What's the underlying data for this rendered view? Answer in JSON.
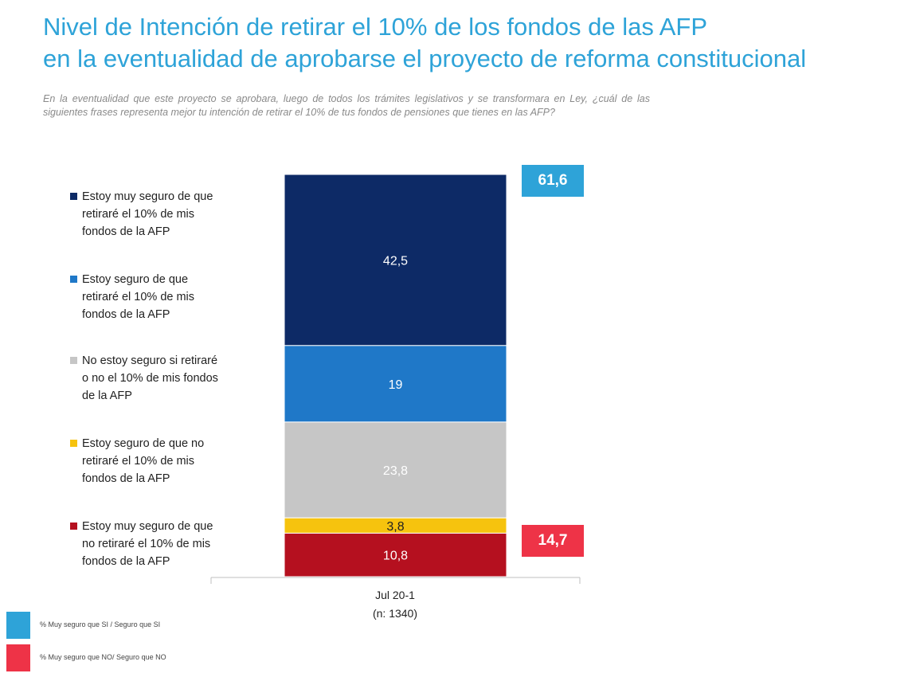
{
  "title": {
    "line1": "Nivel de Intención de retirar el 10% de los fondos de las AFP",
    "line2": "en la eventualidad de aprobarse el proyecto de reforma constitucional"
  },
  "subtitle": "En la eventualidad que este proyecto se aprobara, luego de todos los trámites legislativos y se transformara en Ley, ¿cuál de las siguientes frases representa mejor tu intención de retirar el 10% de tus fondos de pensiones que tienes en las AFP?",
  "chart_data": {
    "type": "bar",
    "stacked": true,
    "categories": [
      "Jul 20-1"
    ],
    "category_note": "(n: 1340)",
    "ylim": [
      0,
      100
    ],
    "grid": false,
    "legend_position": "left",
    "series": [
      {
        "name": "Estoy muy seguro de que retiraré el 10% de mis fondos de la AFP",
        "values": [
          42.5
        ],
        "label": "42,5",
        "color": "#0d2a66",
        "label_color": "#ffffff"
      },
      {
        "name": "Estoy seguro de que retiraré el 10% de mis fondos de la AFP",
        "values": [
          19
        ],
        "label": "19",
        "color": "#1f78c8",
        "label_color": "#ffffff"
      },
      {
        "name": "No estoy seguro si retiraré o no el 10% de mis fondos de la AFP",
        "values": [
          23.8
        ],
        "label": "23,8",
        "color": "#c6c6c6",
        "label_color": "#ffffff"
      },
      {
        "name": "Estoy seguro de que no retiraré el 10% de mis fondos de la AFP",
        "values": [
          3.8
        ],
        "label": "3,8",
        "color": "#f6c30e",
        "label_color": "#222222"
      },
      {
        "name": "Estoy muy seguro de que no retiraré el 10% de mis fondos de la AFP",
        "values": [
          10.8
        ],
        "label": "10,8",
        "color": "#b5101f",
        "label_color": "#ffffff"
      }
    ],
    "summaries": [
      {
        "value": 61.6,
        "label": "61,6",
        "color": "#2ea3d8",
        "legend": "% Muy seguro que SI / Seguro que SI"
      },
      {
        "value": 14.7,
        "label": "14,7",
        "color": "#ee3347",
        "legend": "% Muy seguro que NO/ Seguro que NO"
      }
    ]
  },
  "legend": [
    {
      "line1": "Estoy muy seguro de que",
      "line2": "retiraré el 10% de mis",
      "line3": "fondos de la AFP",
      "color": "#0d2a66"
    },
    {
      "line1": "Estoy seguro de que",
      "line2": "retiraré el 10% de mis",
      "line3": "fondos de la AFP",
      "color": "#1f78c8"
    },
    {
      "line1": "No estoy seguro si retiraré",
      "line2": "o no el 10% de mis fondos",
      "line3": "de la AFP",
      "color": "#c6c6c6"
    },
    {
      "line1": "Estoy seguro de que no",
      "line2": "retiraré el 10% de mis",
      "line3": "fondos de la AFP",
      "color": "#f6c30e"
    },
    {
      "line1": "Estoy muy seguro de que",
      "line2": "no retiraré el 10% de mis",
      "line3": "fondos de la AFP",
      "color": "#b5101f"
    }
  ]
}
